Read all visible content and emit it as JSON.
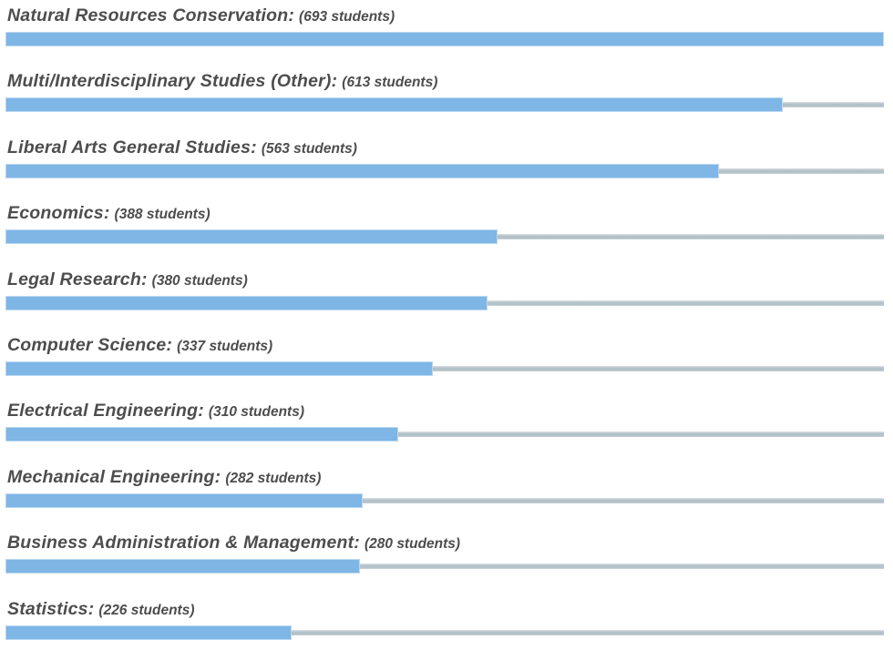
{
  "chart_data": {
    "type": "bar",
    "orientation": "horizontal",
    "title": "",
    "xlabel": "",
    "ylabel": "",
    "categories": [
      "Natural Resources Conservation",
      "Multi/Interdisciplinary Studies (Other)",
      "Liberal Arts General Studies",
      "Economics",
      "Legal Research",
      "Computer Science",
      "Electrical Engineering",
      "Mechanical Engineering",
      "Business Administration & Management",
      "Statistics"
    ],
    "values": [
      693,
      613,
      563,
      388,
      380,
      337,
      310,
      282,
      280,
      226
    ],
    "unit": "students",
    "xlim": [
      0,
      693
    ],
    "grid": false,
    "legend": false,
    "bar_color": "#7eb6e5",
    "bar_border_color": "#b9d7f0",
    "track_color": "#b5c2c9",
    "label_color": "#4d4d4d"
  },
  "rows": [
    {
      "label": "Natural Resources Conservation:",
      "count": "(693 students)",
      "value": 693
    },
    {
      "label": "Multi/Interdisciplinary Studies (Other):",
      "count": "(613 students)",
      "value": 613
    },
    {
      "label": "Liberal Arts General Studies:",
      "count": "(563 students)",
      "value": 563
    },
    {
      "label": "Economics:",
      "count": "(388 students)",
      "value": 388
    },
    {
      "label": "Legal Research:",
      "count": "(380 students)",
      "value": 380
    },
    {
      "label": "Computer Science:",
      "count": "(337 students)",
      "value": 337
    },
    {
      "label": "Electrical Engineering:",
      "count": "(310 students)",
      "value": 310
    },
    {
      "label": "Mechanical Engineering:",
      "count": "(282 students)",
      "value": 282
    },
    {
      "label": "Business Administration & Management:",
      "count": "(280 students)",
      "value": 280
    },
    {
      "label": "Statistics:",
      "count": "(226 students)",
      "value": 226
    }
  ]
}
